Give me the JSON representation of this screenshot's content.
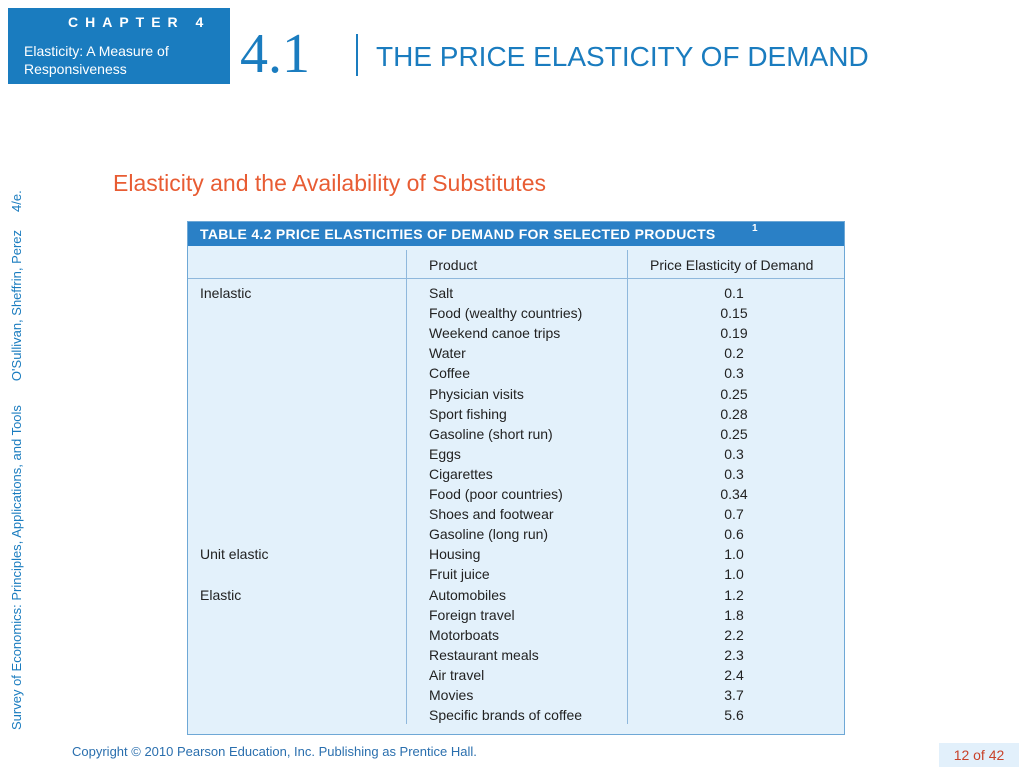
{
  "header": {
    "chapter_label": "CHAPTER 4",
    "chapter_subtitle": "Elasticity: A Measure of Responsiveness",
    "section_number": "4.1",
    "section_title": "THE PRICE ELASTICITY OF DEMAND"
  },
  "sidebar": {
    "book_title": "Survey of Economics: Principles, Applications, and Tools",
    "authors": "O'Sullivan, Sheffrin, Perez",
    "edition": "4/e."
  },
  "subtitle": "Elasticity and the Availability of Substitutes",
  "table": {
    "title": "TABLE 4.2  PRICE ELASTICITIES OF DEMAND FOR SELECTED PRODUCTS",
    "footnote": "1",
    "columns": [
      "Product",
      "Price Elasticity of Demand"
    ],
    "rows": [
      {
        "category": "Inelastic",
        "product": "Salt",
        "value": "0.1"
      },
      {
        "category": "",
        "product": "Food (wealthy countries)",
        "value": "0.15"
      },
      {
        "category": "",
        "product": "Weekend canoe trips",
        "value": "0.19"
      },
      {
        "category": "",
        "product": "Water",
        "value": "0.2"
      },
      {
        "category": "",
        "product": "Coffee",
        "value": "0.3"
      },
      {
        "category": "",
        "product": "Physician visits",
        "value": "0.25"
      },
      {
        "category": "",
        "product": "Sport fishing",
        "value": "0.28"
      },
      {
        "category": "",
        "product": "Gasoline (short run)",
        "value": "0.25"
      },
      {
        "category": "",
        "product": "Eggs",
        "value": "0.3"
      },
      {
        "category": "",
        "product": "Cigarettes",
        "value": "0.3"
      },
      {
        "category": "",
        "product": "Food (poor countries)",
        "value": "0.34"
      },
      {
        "category": "",
        "product": "Shoes and footwear",
        "value": "0.7"
      },
      {
        "category": "",
        "product": "Gasoline (long run)",
        "value": "0.6"
      },
      {
        "category": "Unit elastic",
        "product": "Housing",
        "value": "1.0"
      },
      {
        "category": "",
        "product": "Fruit juice",
        "value": "1.0"
      },
      {
        "category": "Elastic",
        "product": "Automobiles",
        "value": "1.2"
      },
      {
        "category": "",
        "product": "Foreign travel",
        "value": "1.8"
      },
      {
        "category": "",
        "product": "Motorboats",
        "value": "2.2"
      },
      {
        "category": "",
        "product": "Restaurant meals",
        "value": "2.3"
      },
      {
        "category": "",
        "product": "Air travel",
        "value": "2.4"
      },
      {
        "category": "",
        "product": "Movies",
        "value": "3.7"
      },
      {
        "category": "",
        "product": "Specific brands of coffee",
        "value": "5.6"
      }
    ]
  },
  "footer": {
    "copyright": "Copyright © 2010  Pearson Education, Inc. Publishing as Prentice Hall.",
    "page": "12 of 42"
  }
}
